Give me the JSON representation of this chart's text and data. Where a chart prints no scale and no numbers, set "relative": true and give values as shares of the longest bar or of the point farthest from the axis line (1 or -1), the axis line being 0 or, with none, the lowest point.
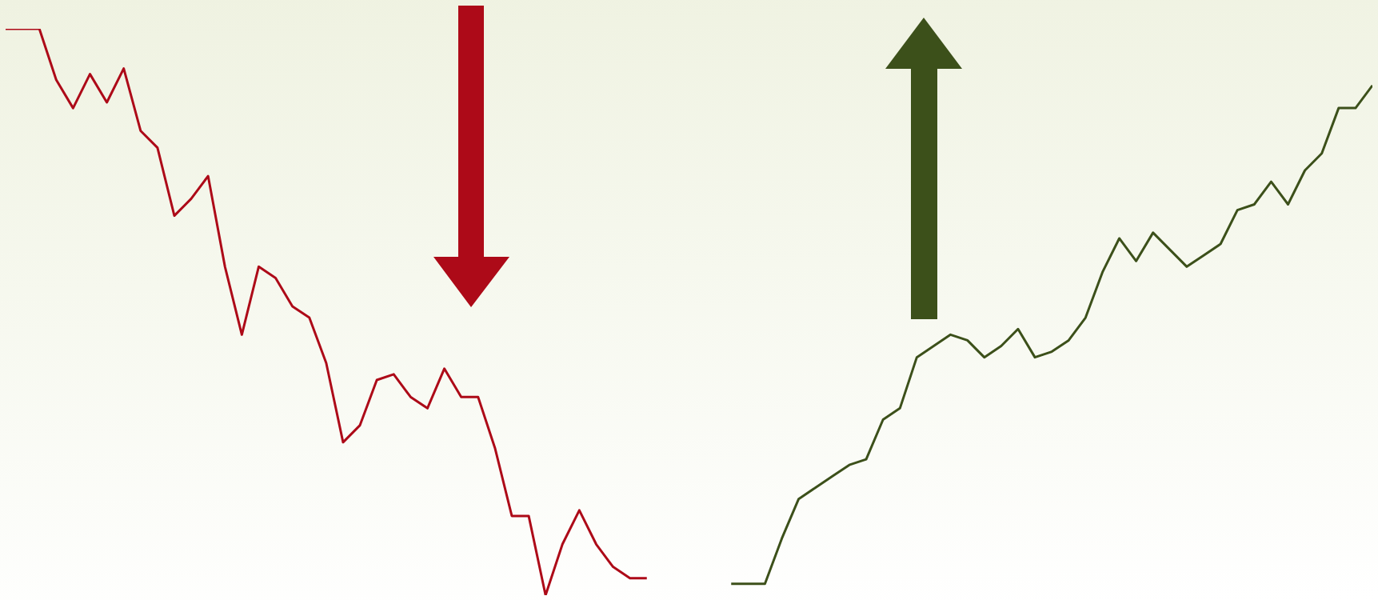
{
  "chart_data": {
    "type": "line",
    "relative": true,
    "marker": "none",
    "line_style": "solid",
    "categories": [
      null,
      null,
      null,
      null,
      null,
      null,
      null,
      null,
      null,
      null,
      null,
      null,
      null,
      null,
      null,
      null,
      null,
      null,
      null,
      null,
      null,
      null,
      null,
      null,
      null,
      null,
      null,
      null,
      null,
      null,
      null,
      null,
      null,
      null,
      null,
      null,
      null,
      null,
      null,
      null,
      null,
      null,
      null,
      null,
      null,
      null,
      null,
      null,
      null,
      null,
      null,
      null,
      null,
      null,
      null,
      null,
      null,
      null,
      null,
      null,
      null,
      null,
      null,
      null,
      null,
      null,
      null,
      null,
      null,
      null,
      null,
      null,
      null,
      null,
      null,
      null,
      null,
      null,
      null,
      null,
      null,
      null
    ],
    "series": [
      {
        "color": "#ad0a18",
        "values": [
          1,
          1,
          1,
          0.91,
          0.86,
          0.92,
          0.87,
          0.93,
          0.82,
          0.79,
          0.67,
          0.7,
          0.74,
          0.58,
          0.46,
          0.58,
          0.56,
          0.51,
          0.49,
          0.41,
          0.27,
          0.3,
          0.38,
          0.39,
          0.35,
          0.33,
          0.4,
          0.35,
          0.35,
          0.26,
          0.14,
          0.14,
          0,
          0.09,
          0.15,
          0.09,
          0.05,
          0.03,
          0.03,
          null,
          null,
          null,
          null,
          null,
          null,
          null,
          null,
          null,
          null,
          null,
          null,
          null,
          null,
          null,
          null,
          null,
          null,
          null,
          null,
          null,
          null,
          null,
          null,
          null,
          null,
          null,
          null,
          null,
          null,
          null,
          null,
          null,
          null,
          null,
          null,
          null,
          null,
          null,
          null,
          null,
          null,
          null
        ]
      },
      {
        "color": "#3c501a",
        "values": [
          null,
          null,
          null,
          null,
          null,
          null,
          null,
          null,
          null,
          null,
          null,
          null,
          null,
          null,
          null,
          null,
          null,
          null,
          null,
          null,
          null,
          null,
          null,
          null,
          null,
          null,
          null,
          null,
          null,
          null,
          null,
          null,
          null,
          null,
          null,
          null,
          null,
          null,
          null,
          null,
          null,
          null,
          null,
          0.02,
          0.02,
          0.02,
          0.1,
          0.17,
          0.19,
          0.21,
          0.23,
          0.24,
          0.31,
          0.33,
          0.42,
          0.44,
          0.46,
          0.45,
          0.42,
          0.44,
          0.47,
          0.42,
          0.43,
          0.45,
          0.49,
          0.57,
          0.63,
          0.59,
          0.64,
          0.61,
          0.58,
          0.6,
          0.62,
          0.68,
          0.69,
          0.73,
          0.69,
          0.75,
          0.78,
          0.86,
          0.86,
          0.9
        ]
      }
    ]
  }
}
